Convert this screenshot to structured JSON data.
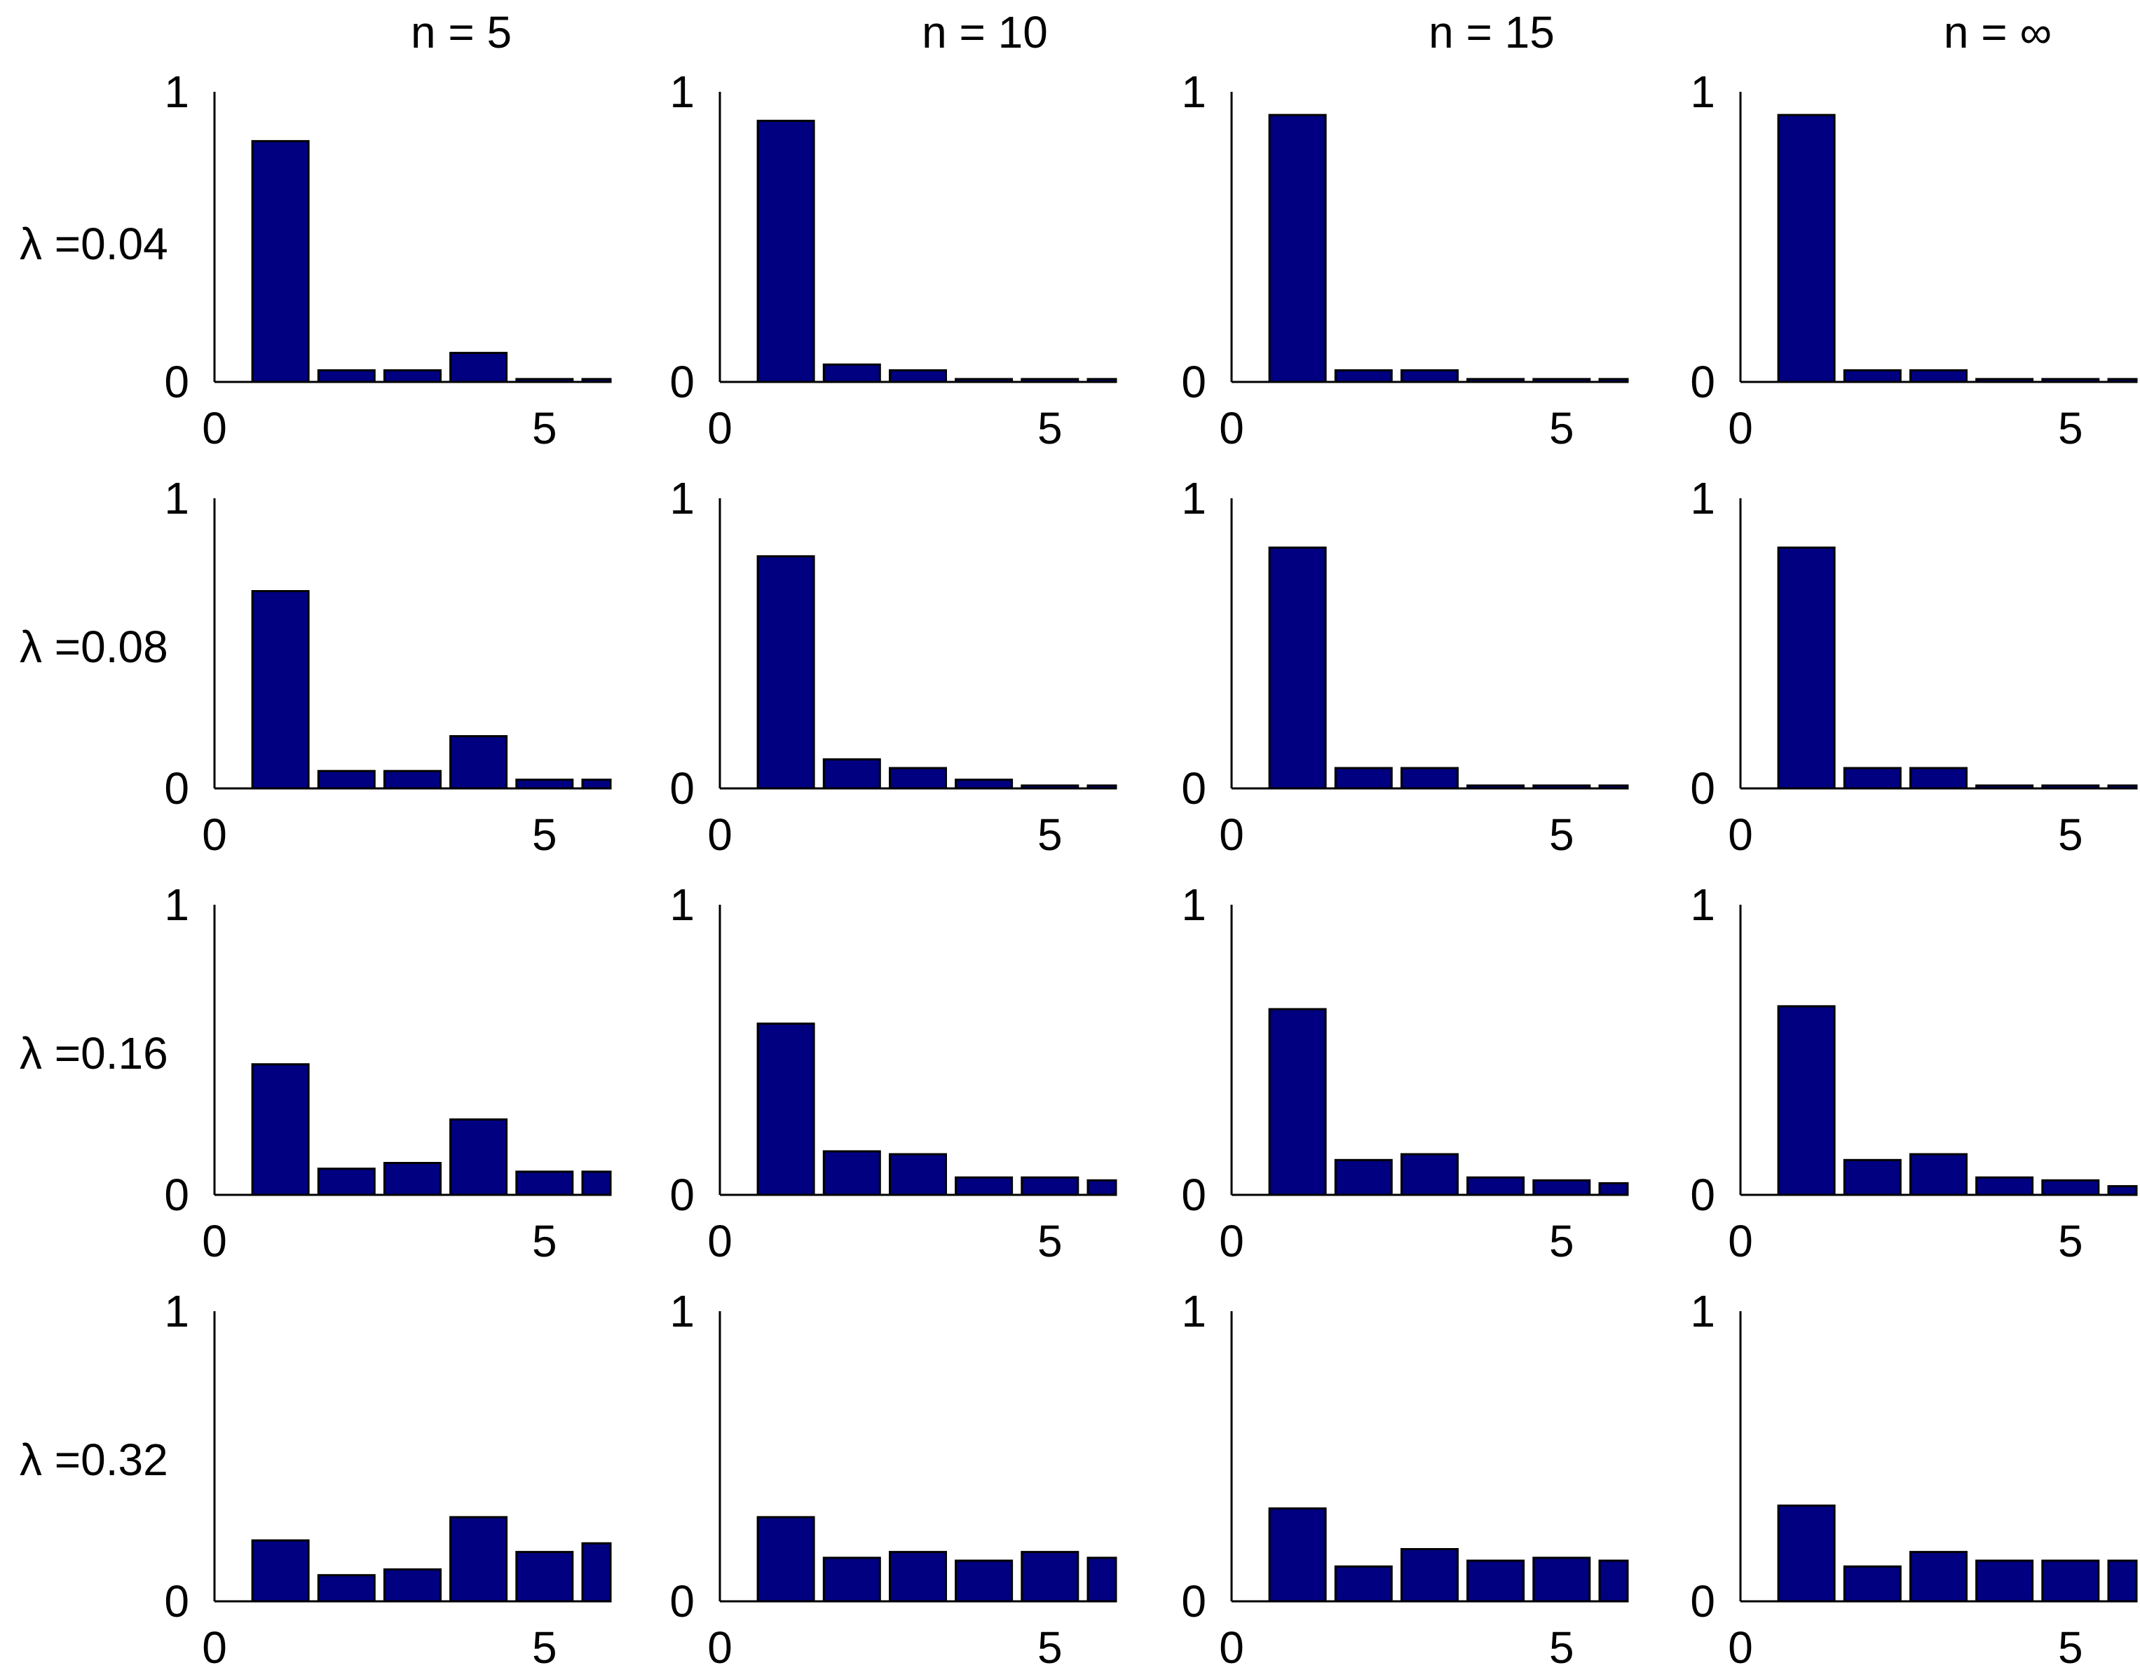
{
  "figure": {
    "column_titles": [
      "n = 5",
      "n = 10",
      "n = 15",
      "n = ∞"
    ],
    "row_labels": [
      "λ =0.04",
      "λ =0.08",
      "λ =0.16",
      "λ =0.32"
    ]
  },
  "colors": {
    "bar_fill": "#000080",
    "bar_stroke": "#000000",
    "axis": "#000000",
    "background": "#ffffff"
  },
  "chart_data": [
    {
      "type": "bar",
      "row": 0,
      "col": 0,
      "x": [
        1,
        2,
        3,
        4,
        5,
        6
      ],
      "values": [
        0.83,
        0.04,
        0.04,
        0.1,
        0.01,
        0.01
      ],
      "xlim": [
        0,
        6
      ],
      "ylim": [
        0,
        1
      ],
      "xticks": [
        0,
        5
      ],
      "yticks": [
        0,
        1
      ],
      "xtick_labels": [
        "0",
        "5"
      ],
      "ytick_labels": [
        "0",
        "1"
      ]
    },
    {
      "type": "bar",
      "row": 0,
      "col": 1,
      "x": [
        1,
        2,
        3,
        4,
        5,
        6
      ],
      "values": [
        0.9,
        0.06,
        0.04,
        0.01,
        0.01,
        0.01
      ],
      "xlim": [
        0,
        6
      ],
      "ylim": [
        0,
        1
      ],
      "xticks": [
        0,
        5
      ],
      "yticks": [
        0,
        1
      ],
      "xtick_labels": [
        "0",
        "5"
      ],
      "ytick_labels": [
        "0",
        "1"
      ]
    },
    {
      "type": "bar",
      "row": 0,
      "col": 2,
      "x": [
        1,
        2,
        3,
        4,
        5,
        6
      ],
      "values": [
        0.92,
        0.04,
        0.04,
        0.01,
        0.01,
        0.01
      ],
      "xlim": [
        0,
        6
      ],
      "ylim": [
        0,
        1
      ],
      "xticks": [
        0,
        5
      ],
      "yticks": [
        0,
        1
      ],
      "xtick_labels": [
        "0",
        "5"
      ],
      "ytick_labels": [
        "0",
        "1"
      ]
    },
    {
      "type": "bar",
      "row": 0,
      "col": 3,
      "x": [
        1,
        2,
        3,
        4,
        5,
        6
      ],
      "values": [
        0.92,
        0.04,
        0.04,
        0.01,
        0.01,
        0.01
      ],
      "xlim": [
        0,
        6
      ],
      "ylim": [
        0,
        1
      ],
      "xticks": [
        0,
        5
      ],
      "yticks": [
        0,
        1
      ],
      "xtick_labels": [
        "0",
        "5"
      ],
      "ytick_labels": [
        "0",
        "1"
      ]
    },
    {
      "type": "bar",
      "row": 1,
      "col": 0,
      "x": [
        1,
        2,
        3,
        4,
        5,
        6
      ],
      "values": [
        0.68,
        0.06,
        0.06,
        0.18,
        0.03,
        0.03
      ],
      "xlim": [
        0,
        6
      ],
      "ylim": [
        0,
        1
      ],
      "xticks": [
        0,
        5
      ],
      "yticks": [
        0,
        1
      ],
      "xtick_labels": [
        "0",
        "5"
      ],
      "ytick_labels": [
        "0",
        "1"
      ]
    },
    {
      "type": "bar",
      "row": 1,
      "col": 1,
      "x": [
        1,
        2,
        3,
        4,
        5,
        6
      ],
      "values": [
        0.8,
        0.1,
        0.07,
        0.03,
        0.01,
        0.01
      ],
      "xlim": [
        0,
        6
      ],
      "ylim": [
        0,
        1
      ],
      "xticks": [
        0,
        5
      ],
      "yticks": [
        0,
        1
      ],
      "xtick_labels": [
        "0",
        "5"
      ],
      "ytick_labels": [
        "0",
        "1"
      ]
    },
    {
      "type": "bar",
      "row": 1,
      "col": 2,
      "x": [
        1,
        2,
        3,
        4,
        5,
        6
      ],
      "values": [
        0.83,
        0.07,
        0.07,
        0.01,
        0.01,
        0.01
      ],
      "xlim": [
        0,
        6
      ],
      "ylim": [
        0,
        1
      ],
      "xticks": [
        0,
        5
      ],
      "yticks": [
        0,
        1
      ],
      "xtick_labels": [
        "0",
        "5"
      ],
      "ytick_labels": [
        "0",
        "1"
      ]
    },
    {
      "type": "bar",
      "row": 1,
      "col": 3,
      "x": [
        1,
        2,
        3,
        4,
        5,
        6
      ],
      "values": [
        0.83,
        0.07,
        0.07,
        0.01,
        0.01,
        0.01
      ],
      "xlim": [
        0,
        6
      ],
      "ylim": [
        0,
        1
      ],
      "xticks": [
        0,
        5
      ],
      "yticks": [
        0,
        1
      ],
      "xtick_labels": [
        "0",
        "5"
      ],
      "ytick_labels": [
        "0",
        "1"
      ]
    },
    {
      "type": "bar",
      "row": 2,
      "col": 0,
      "x": [
        1,
        2,
        3,
        4,
        5,
        6
      ],
      "values": [
        0.45,
        0.09,
        0.11,
        0.26,
        0.08,
        0.08
      ],
      "xlim": [
        0,
        6
      ],
      "ylim": [
        0,
        1
      ],
      "xticks": [
        0,
        5
      ],
      "yticks": [
        0,
        1
      ],
      "xtick_labels": [
        "0",
        "5"
      ],
      "ytick_labels": [
        "0",
        "1"
      ]
    },
    {
      "type": "bar",
      "row": 2,
      "col": 1,
      "x": [
        1,
        2,
        3,
        4,
        5,
        6
      ],
      "values": [
        0.59,
        0.15,
        0.14,
        0.06,
        0.06,
        0.05
      ],
      "xlim": [
        0,
        6
      ],
      "ylim": [
        0,
        1
      ],
      "xticks": [
        0,
        5
      ],
      "yticks": [
        0,
        1
      ],
      "xtick_labels": [
        "0",
        "5"
      ],
      "ytick_labels": [
        "0",
        "1"
      ]
    },
    {
      "type": "bar",
      "row": 2,
      "col": 2,
      "x": [
        1,
        2,
        3,
        4,
        5,
        6
      ],
      "values": [
        0.64,
        0.12,
        0.14,
        0.06,
        0.05,
        0.04
      ],
      "xlim": [
        0,
        6
      ],
      "ylim": [
        0,
        1
      ],
      "xticks": [
        0,
        5
      ],
      "yticks": [
        0,
        1
      ],
      "xtick_labels": [
        "0",
        "5"
      ],
      "ytick_labels": [
        "0",
        "1"
      ]
    },
    {
      "type": "bar",
      "row": 2,
      "col": 3,
      "x": [
        1,
        2,
        3,
        4,
        5,
        6
      ],
      "values": [
        0.65,
        0.12,
        0.14,
        0.06,
        0.05,
        0.03
      ],
      "xlim": [
        0,
        6
      ],
      "ylim": [
        0,
        1
      ],
      "xticks": [
        0,
        5
      ],
      "yticks": [
        0,
        1
      ],
      "xtick_labels": [
        "0",
        "5"
      ],
      "ytick_labels": [
        "0",
        "1"
      ]
    },
    {
      "type": "bar",
      "row": 3,
      "col": 0,
      "x": [
        1,
        2,
        3,
        4,
        5,
        6
      ],
      "values": [
        0.21,
        0.09,
        0.11,
        0.29,
        0.17,
        0.2
      ],
      "xlim": [
        0,
        6
      ],
      "ylim": [
        0,
        1
      ],
      "xticks": [
        0,
        5
      ],
      "yticks": [
        0,
        1
      ],
      "xtick_labels": [
        "0",
        "5"
      ],
      "ytick_labels": [
        "0",
        "1"
      ]
    },
    {
      "type": "bar",
      "row": 3,
      "col": 1,
      "x": [
        1,
        2,
        3,
        4,
        5,
        6
      ],
      "values": [
        0.29,
        0.15,
        0.17,
        0.14,
        0.17,
        0.15
      ],
      "xlim": [
        0,
        6
      ],
      "ylim": [
        0,
        1
      ],
      "xticks": [
        0,
        5
      ],
      "yticks": [
        0,
        1
      ],
      "xtick_labels": [
        "0",
        "5"
      ],
      "ytick_labels": [
        "0",
        "1"
      ]
    },
    {
      "type": "bar",
      "row": 3,
      "col": 2,
      "x": [
        1,
        2,
        3,
        4,
        5,
        6
      ],
      "values": [
        0.32,
        0.12,
        0.18,
        0.14,
        0.15,
        0.14
      ],
      "xlim": [
        0,
        6
      ],
      "ylim": [
        0,
        1
      ],
      "xticks": [
        0,
        5
      ],
      "yticks": [
        0,
        1
      ],
      "xtick_labels": [
        "0",
        "5"
      ],
      "ytick_labels": [
        "0",
        "1"
      ]
    },
    {
      "type": "bar",
      "row": 3,
      "col": 3,
      "x": [
        1,
        2,
        3,
        4,
        5,
        6
      ],
      "values": [
        0.33,
        0.12,
        0.17,
        0.14,
        0.14,
        0.14
      ],
      "xlim": [
        0,
        6
      ],
      "ylim": [
        0,
        1
      ],
      "xticks": [
        0,
        5
      ],
      "yticks": [
        0,
        1
      ],
      "xtick_labels": [
        "0",
        "5"
      ],
      "ytick_labels": [
        "0",
        "1"
      ]
    }
  ]
}
